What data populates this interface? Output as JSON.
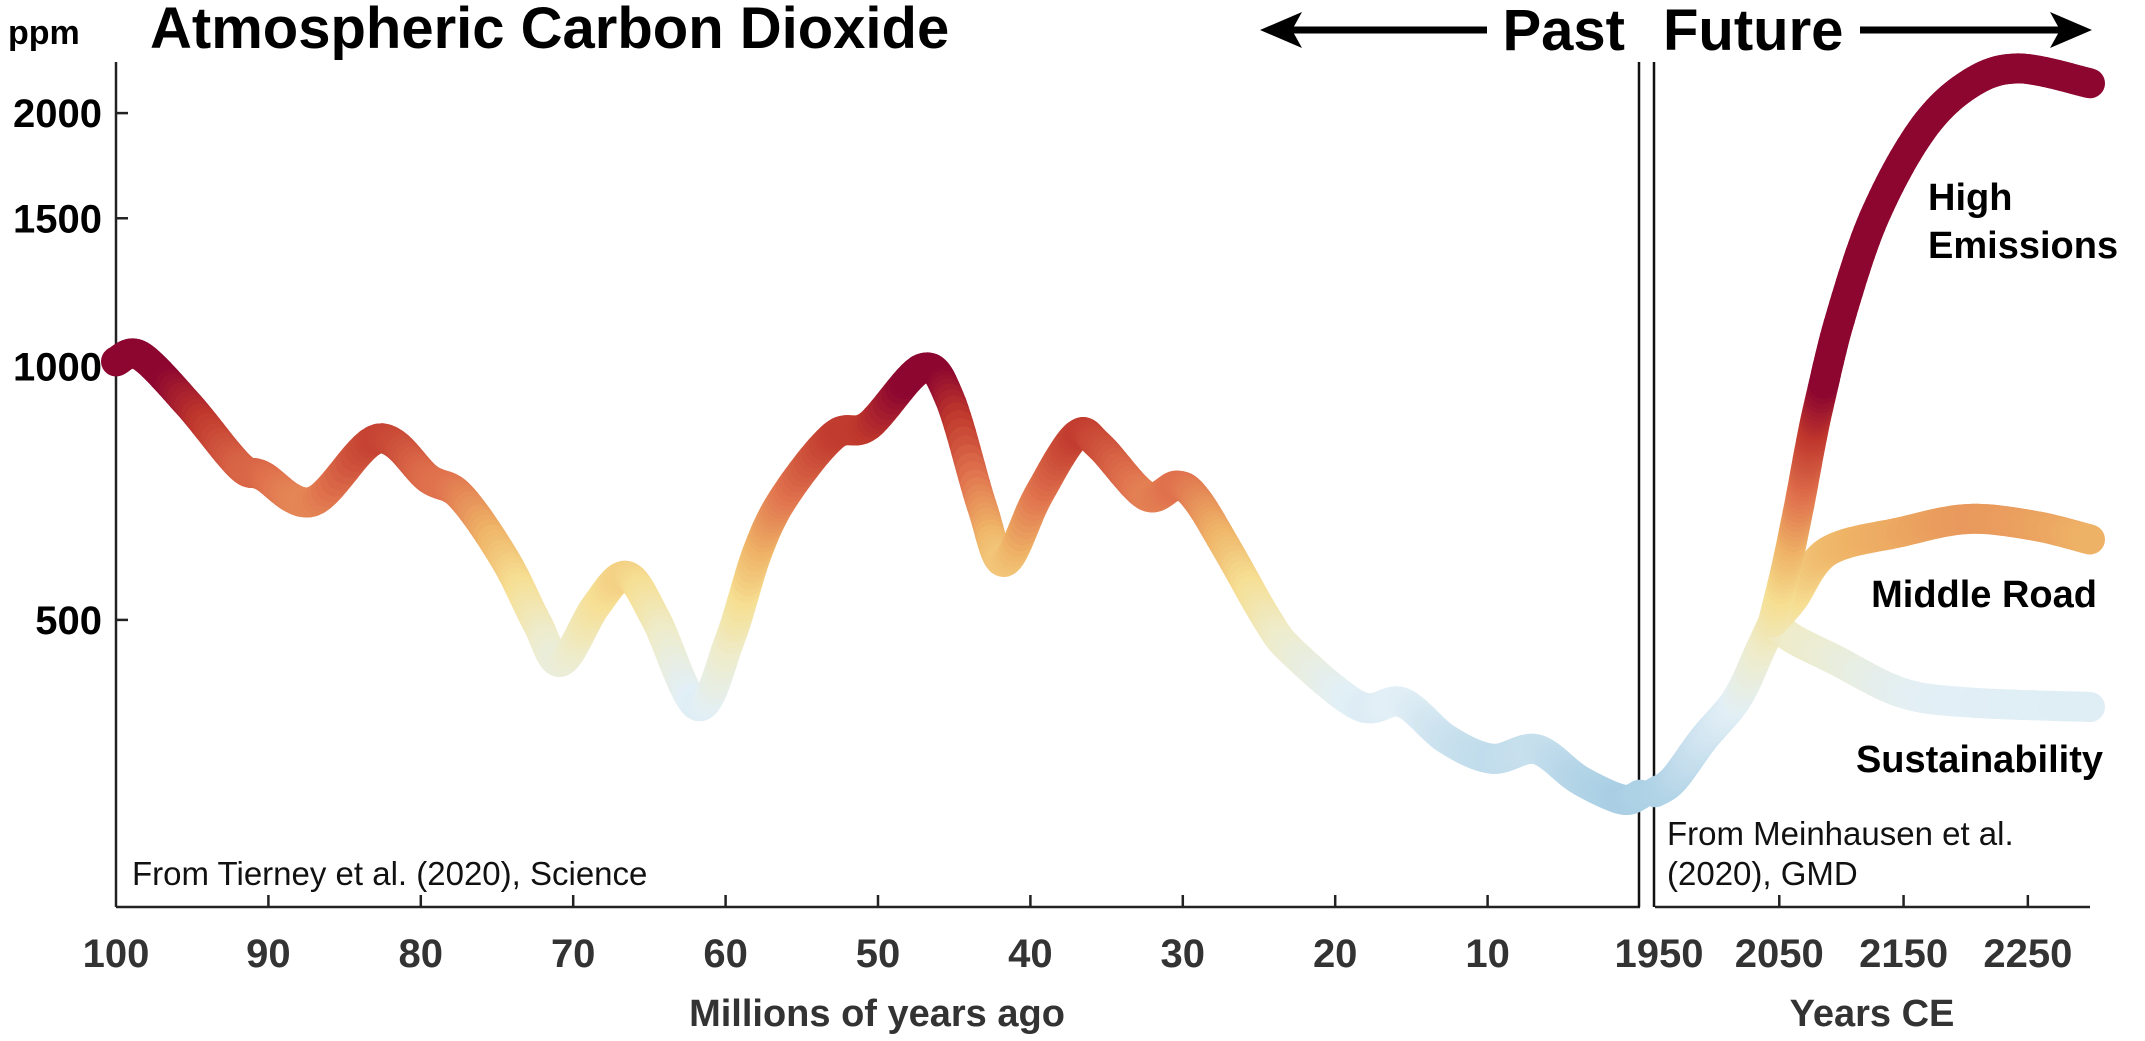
{
  "chart_data": {
    "type": "line",
    "title": "Atmospheric Carbon Dioxide",
    "ylabel": "ppm",
    "yscale": "log",
    "ylim": [
      228,
      2300
    ],
    "yticks": [
      500,
      1000,
      1500,
      2000
    ],
    "grid": false,
    "header": {
      "past": "Past",
      "future": "Future"
    },
    "past_panel": {
      "xlabel": "Millions of years ago",
      "xlim": [
        100,
        0
      ],
      "xticks": [
        100,
        90,
        80,
        70,
        60,
        50,
        40,
        30,
        20,
        10
      ],
      "source": "From Tierney et al. (2020), Science",
      "x": [
        100,
        98.4,
        95.2,
        91.9,
        90.4,
        87.1,
        82.8,
        79.5,
        77.4,
        74.5,
        72.4,
        70.8,
        68.5,
        66.5,
        64.6,
        61.8,
        59.7,
        57.9,
        56.1,
        52.9,
        50.6,
        47.1,
        45.3,
        43.2,
        41.7,
        39.5,
        37.0,
        35.5,
        32.4,
        30.4,
        29.1,
        27.0,
        24.5,
        22.8,
        18.4,
        15.6,
        12.7,
        9.7,
        6.8,
        4.0,
        1.2,
        0
      ],
      "y": [
        1014,
        1030,
        899,
        762,
        742,
        691,
        821,
        736,
        702,
        591,
        497,
        446,
        520,
        564,
        502,
        395,
        475,
        603,
        702,
        828,
        851,
        995,
        916,
        684,
        586,
        702,
        828,
        806,
        702,
        722,
        696,
        603,
        502,
        458,
        395,
        399,
        361,
        342,
        351,
        323,
        306,
        310
      ]
    },
    "future_panel": {
      "xlabel": "Years CE",
      "xlim": [
        1950,
        2300
      ],
      "xticks": [
        1950,
        2050,
        2150,
        2250
      ],
      "source_line1": "From Meinhausen et al.",
      "source_line2": "(2020), GMD",
      "historical": {
        "x": [
          1950,
          1965,
          1989,
          2016,
          2035,
          2045
        ],
        "y": [
          312,
          323,
          361,
          403,
          462,
          497
        ]
      },
      "series": [
        {
          "name": "High Emissions",
          "name_line1": "High",
          "name_line2": "Emissions",
          "x": [
            2045,
            2056,
            2067,
            2075,
            2083,
            2099,
            2126,
            2164,
            2202,
            2242,
            2300
          ],
          "y": [
            497,
            580,
            696,
            806,
            916,
            1141,
            1500,
            1903,
            2161,
            2260,
            2170
          ]
        },
        {
          "name": "Middle Road",
          "x": [
            2045,
            2061,
            2089,
            2148,
            2202,
            2255,
            2300
          ],
          "y": [
            497,
            529,
            603,
            636,
            659,
            647,
            623
          ]
        },
        {
          "name": "Sustainability",
          "x": [
            2045,
            2061,
            2094,
            2148,
            2202,
            2300
          ],
          "y": [
            497,
            475,
            449,
            410,
            399,
            394
          ]
        }
      ]
    },
    "colormap": {
      "ppm": [
        300,
        400,
        470,
        540,
        620,
        720,
        850,
        960
      ],
      "colors": [
        "#a6cde3",
        "#e2eff6",
        "#eeeccb",
        "#f6df93",
        "#efb467",
        "#e0734e",
        "#bf372c",
        "#8c0630"
      ]
    }
  }
}
